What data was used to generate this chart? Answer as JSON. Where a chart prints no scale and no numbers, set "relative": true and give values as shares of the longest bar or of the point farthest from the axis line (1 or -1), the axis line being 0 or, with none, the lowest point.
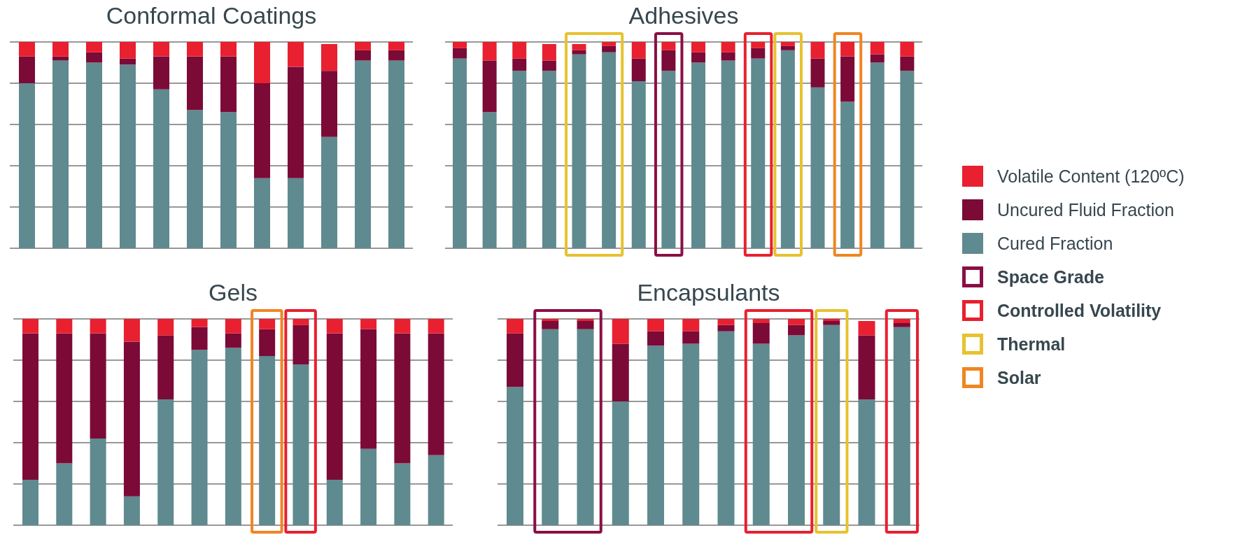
{
  "chart_data": [
    {
      "type": "bar",
      "title": "Conformal Coatings",
      "relative": true,
      "stacked": true,
      "grid": "y",
      "categories": [
        null,
        null,
        null,
        null,
        null,
        null,
        null,
        null,
        null,
        null,
        null,
        null
      ],
      "series": [
        {
          "color": "#5f8a8f",
          "values": [
            0.8,
            0.91,
            0.9,
            0.89,
            0.77,
            0.67,
            0.66,
            0.34,
            0.34,
            0.54,
            0.91,
            0.91
          ]
        },
        {
          "color": "#7b0a37",
          "values": [
            0.13,
            0.02,
            0.05,
            0.03,
            0.16,
            0.26,
            0.27,
            0.46,
            0.54,
            0.32,
            0.05,
            0.05
          ]
        },
        {
          "color": "#e8202f",
          "values": [
            0.07,
            0.07,
            0.05,
            0.08,
            0.07,
            0.07,
            0.07,
            0.2,
            0.12,
            0.13,
            0.04,
            0.04
          ]
        }
      ]
    },
    {
      "type": "bar",
      "title": "Adhesives",
      "relative": true,
      "stacked": true,
      "grid": "y",
      "legend": "right",
      "categories": [
        null,
        null,
        null,
        null,
        null,
        null,
        null,
        null,
        null,
        null,
        null,
        null,
        null,
        null,
        null,
        null
      ],
      "series": [
        {
          "name": "Cured Fraction",
          "color": "#5f8a8f",
          "values": [
            0.92,
            0.66,
            0.86,
            0.86,
            0.94,
            0.95,
            0.81,
            0.86,
            0.9,
            0.91,
            0.92,
            0.96,
            0.78,
            0.71,
            0.9,
            0.86
          ]
        },
        {
          "name": "Uncured Fluid Fraction",
          "color": "#7b0a37",
          "values": [
            0.05,
            0.25,
            0.06,
            0.05,
            0.02,
            0.03,
            0.11,
            0.1,
            0.05,
            0.04,
            0.05,
            0.02,
            0.14,
            0.22,
            0.04,
            0.07
          ]
        },
        {
          "name": "Volatile Content (120ºC)",
          "color": "#e8202f",
          "values": [
            0.03,
            0.09,
            0.08,
            0.08,
            0.03,
            0.02,
            0.08,
            0.04,
            0.05,
            0.05,
            0.03,
            0.02,
            0.08,
            0.07,
            0.06,
            0.07
          ]
        }
      ],
      "annotations": [
        "Space Grade",
        "Controlled Volatility",
        "Thermal",
        "Solar"
      ]
    },
    {
      "type": "bar",
      "title": "Gels",
      "relative": true,
      "stacked": true,
      "grid": "y",
      "categories": [
        null,
        null,
        null,
        null,
        null,
        null,
        null,
        null,
        null,
        null,
        null,
        null,
        null
      ],
      "series": [
        {
          "color": "#5f8a8f",
          "values": [
            0.22,
            0.3,
            0.42,
            0.14,
            0.61,
            0.85,
            0.86,
            0.82,
            0.78,
            0.22,
            0.37,
            0.3,
            0.34
          ]
        },
        {
          "color": "#7b0a37",
          "values": [
            0.71,
            0.63,
            0.51,
            0.75,
            0.31,
            0.11,
            0.07,
            0.13,
            0.19,
            0.71,
            0.58,
            0.63,
            0.59
          ]
        },
        {
          "color": "#e8202f",
          "values": [
            0.07,
            0.07,
            0.07,
            0.11,
            0.08,
            0.04,
            0.07,
            0.05,
            0.03,
            0.07,
            0.05,
            0.07,
            0.07
          ]
        }
      ]
    },
    {
      "type": "bar",
      "title": "Encapsulants",
      "relative": true,
      "stacked": true,
      "grid": "y",
      "categories": [
        null,
        null,
        null,
        null,
        null,
        null,
        null,
        null,
        null,
        null,
        null,
        null
      ],
      "series": [
        {
          "color": "#5f8a8f",
          "values": [
            0.67,
            0.95,
            0.95,
            0.6,
            0.87,
            0.88,
            0.94,
            0.88,
            0.92,
            0.97,
            0.61,
            0.96
          ]
        },
        {
          "color": "#7b0a37",
          "values": [
            0.26,
            0.04,
            0.04,
            0.28,
            0.07,
            0.06,
            0.03,
            0.1,
            0.05,
            0.02,
            0.31,
            0.02
          ]
        },
        {
          "color": "#e8202f",
          "values": [
            0.07,
            0.01,
            0.01,
            0.12,
            0.06,
            0.06,
            0.03,
            0.02,
            0.03,
            0.01,
            0.07,
            0.02
          ]
        }
      ]
    }
  ]
}
